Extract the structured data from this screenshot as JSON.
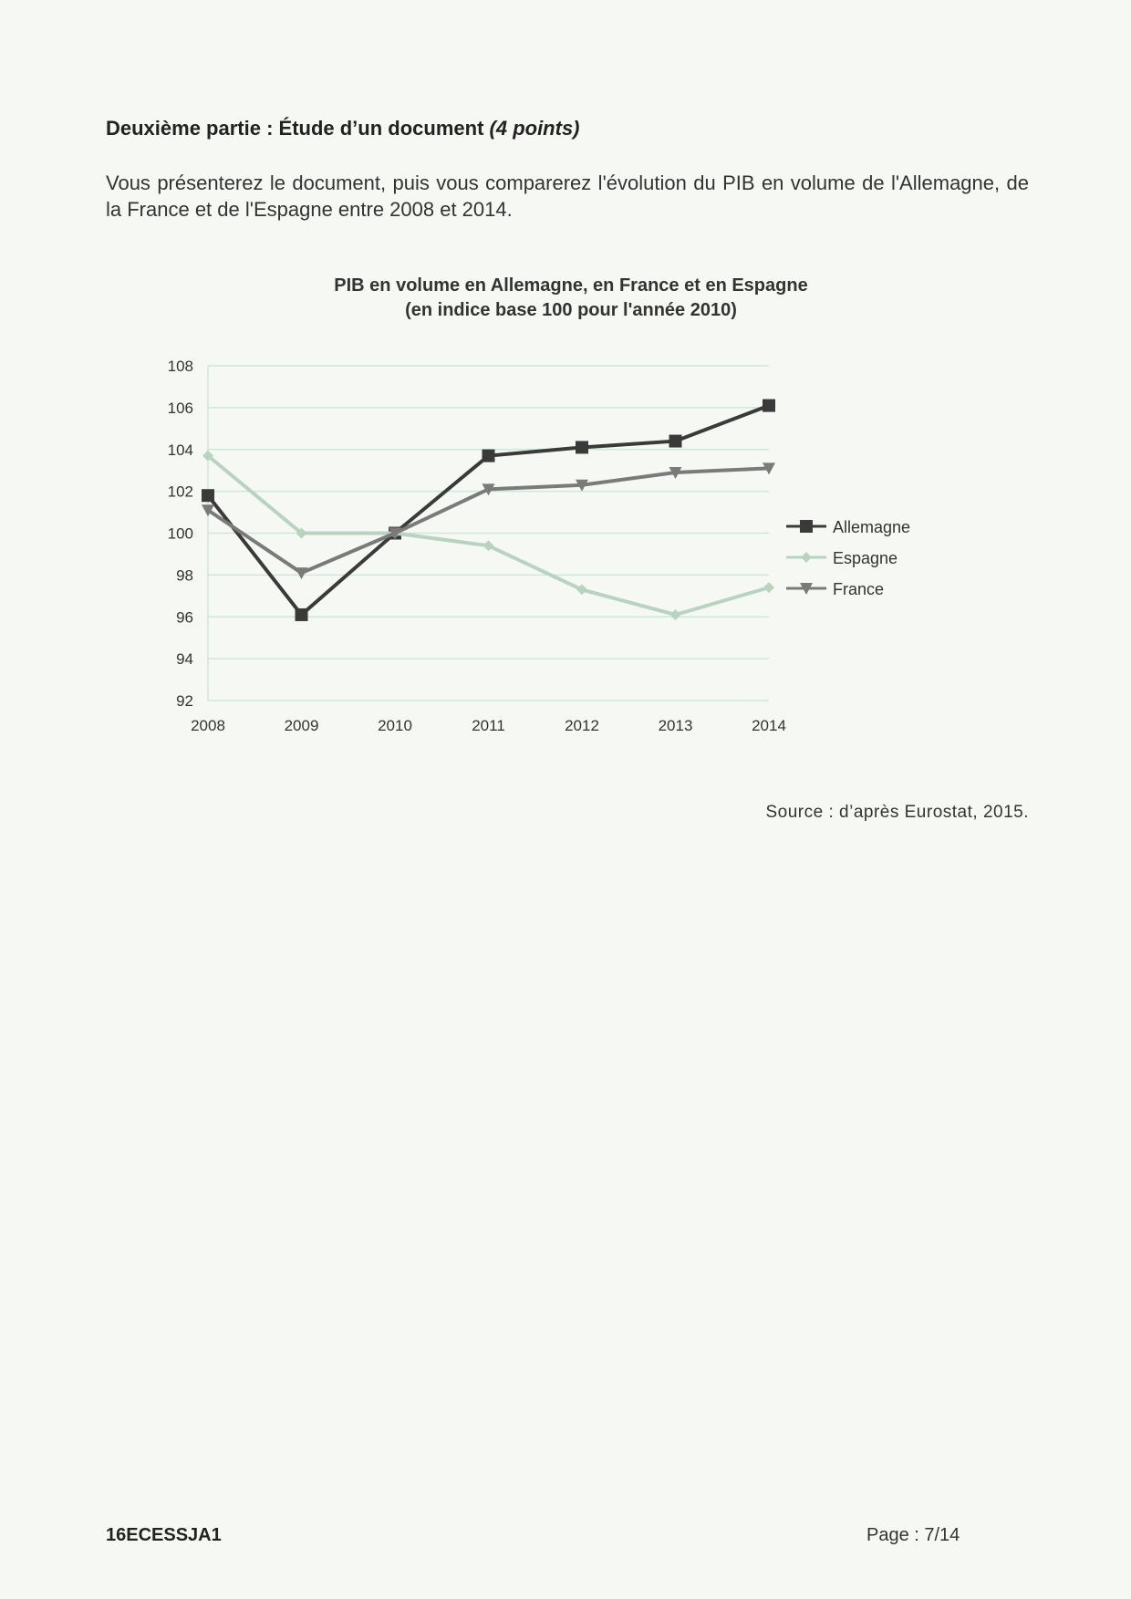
{
  "heading": {
    "text": "Deuxième partie : Étude d’un document ",
    "points": "(4 points)"
  },
  "instructions": "Vous présenterez le document, puis vous comparerez l'évolution du PIB en volume de l'Allemagne, de la France et de l'Espagne entre 2008 et 2014.",
  "chart_data": {
    "type": "line",
    "title": "PIB en volume en Allemagne, en France et en Espagne",
    "subtitle": "(en indice base 100 pour l'année 2010)",
    "xlabel": "",
    "ylabel": "",
    "categories": [
      "2008",
      "2009",
      "2010",
      "2011",
      "2012",
      "2013",
      "2014"
    ],
    "ylim": [
      92,
      108
    ],
    "yticks": [
      92,
      94,
      96,
      98,
      100,
      102,
      104,
      106,
      108
    ],
    "grid": true,
    "legend": "right",
    "series": [
      {
        "name": "Allemagne",
        "marker": "square",
        "color": "#3a3a3a",
        "values": [
          101.8,
          96.1,
          100.0,
          103.7,
          104.1,
          104.4,
          106.1
        ]
      },
      {
        "name": "Espagne",
        "marker": "diamond",
        "color": "#b8d4c0",
        "values": [
          103.7,
          100.0,
          100.0,
          99.4,
          97.3,
          96.1,
          97.4
        ]
      },
      {
        "name": "France",
        "marker": "triangle-down",
        "color": "#7a7a7a",
        "values": [
          101.1,
          98.1,
          100.0,
          102.1,
          102.3,
          102.9,
          103.1
        ]
      }
    ]
  },
  "source": "Source : d’après Eurostat, 2015.",
  "footer": {
    "code": "16ECESSJA1",
    "page": "Page : 7/14"
  }
}
